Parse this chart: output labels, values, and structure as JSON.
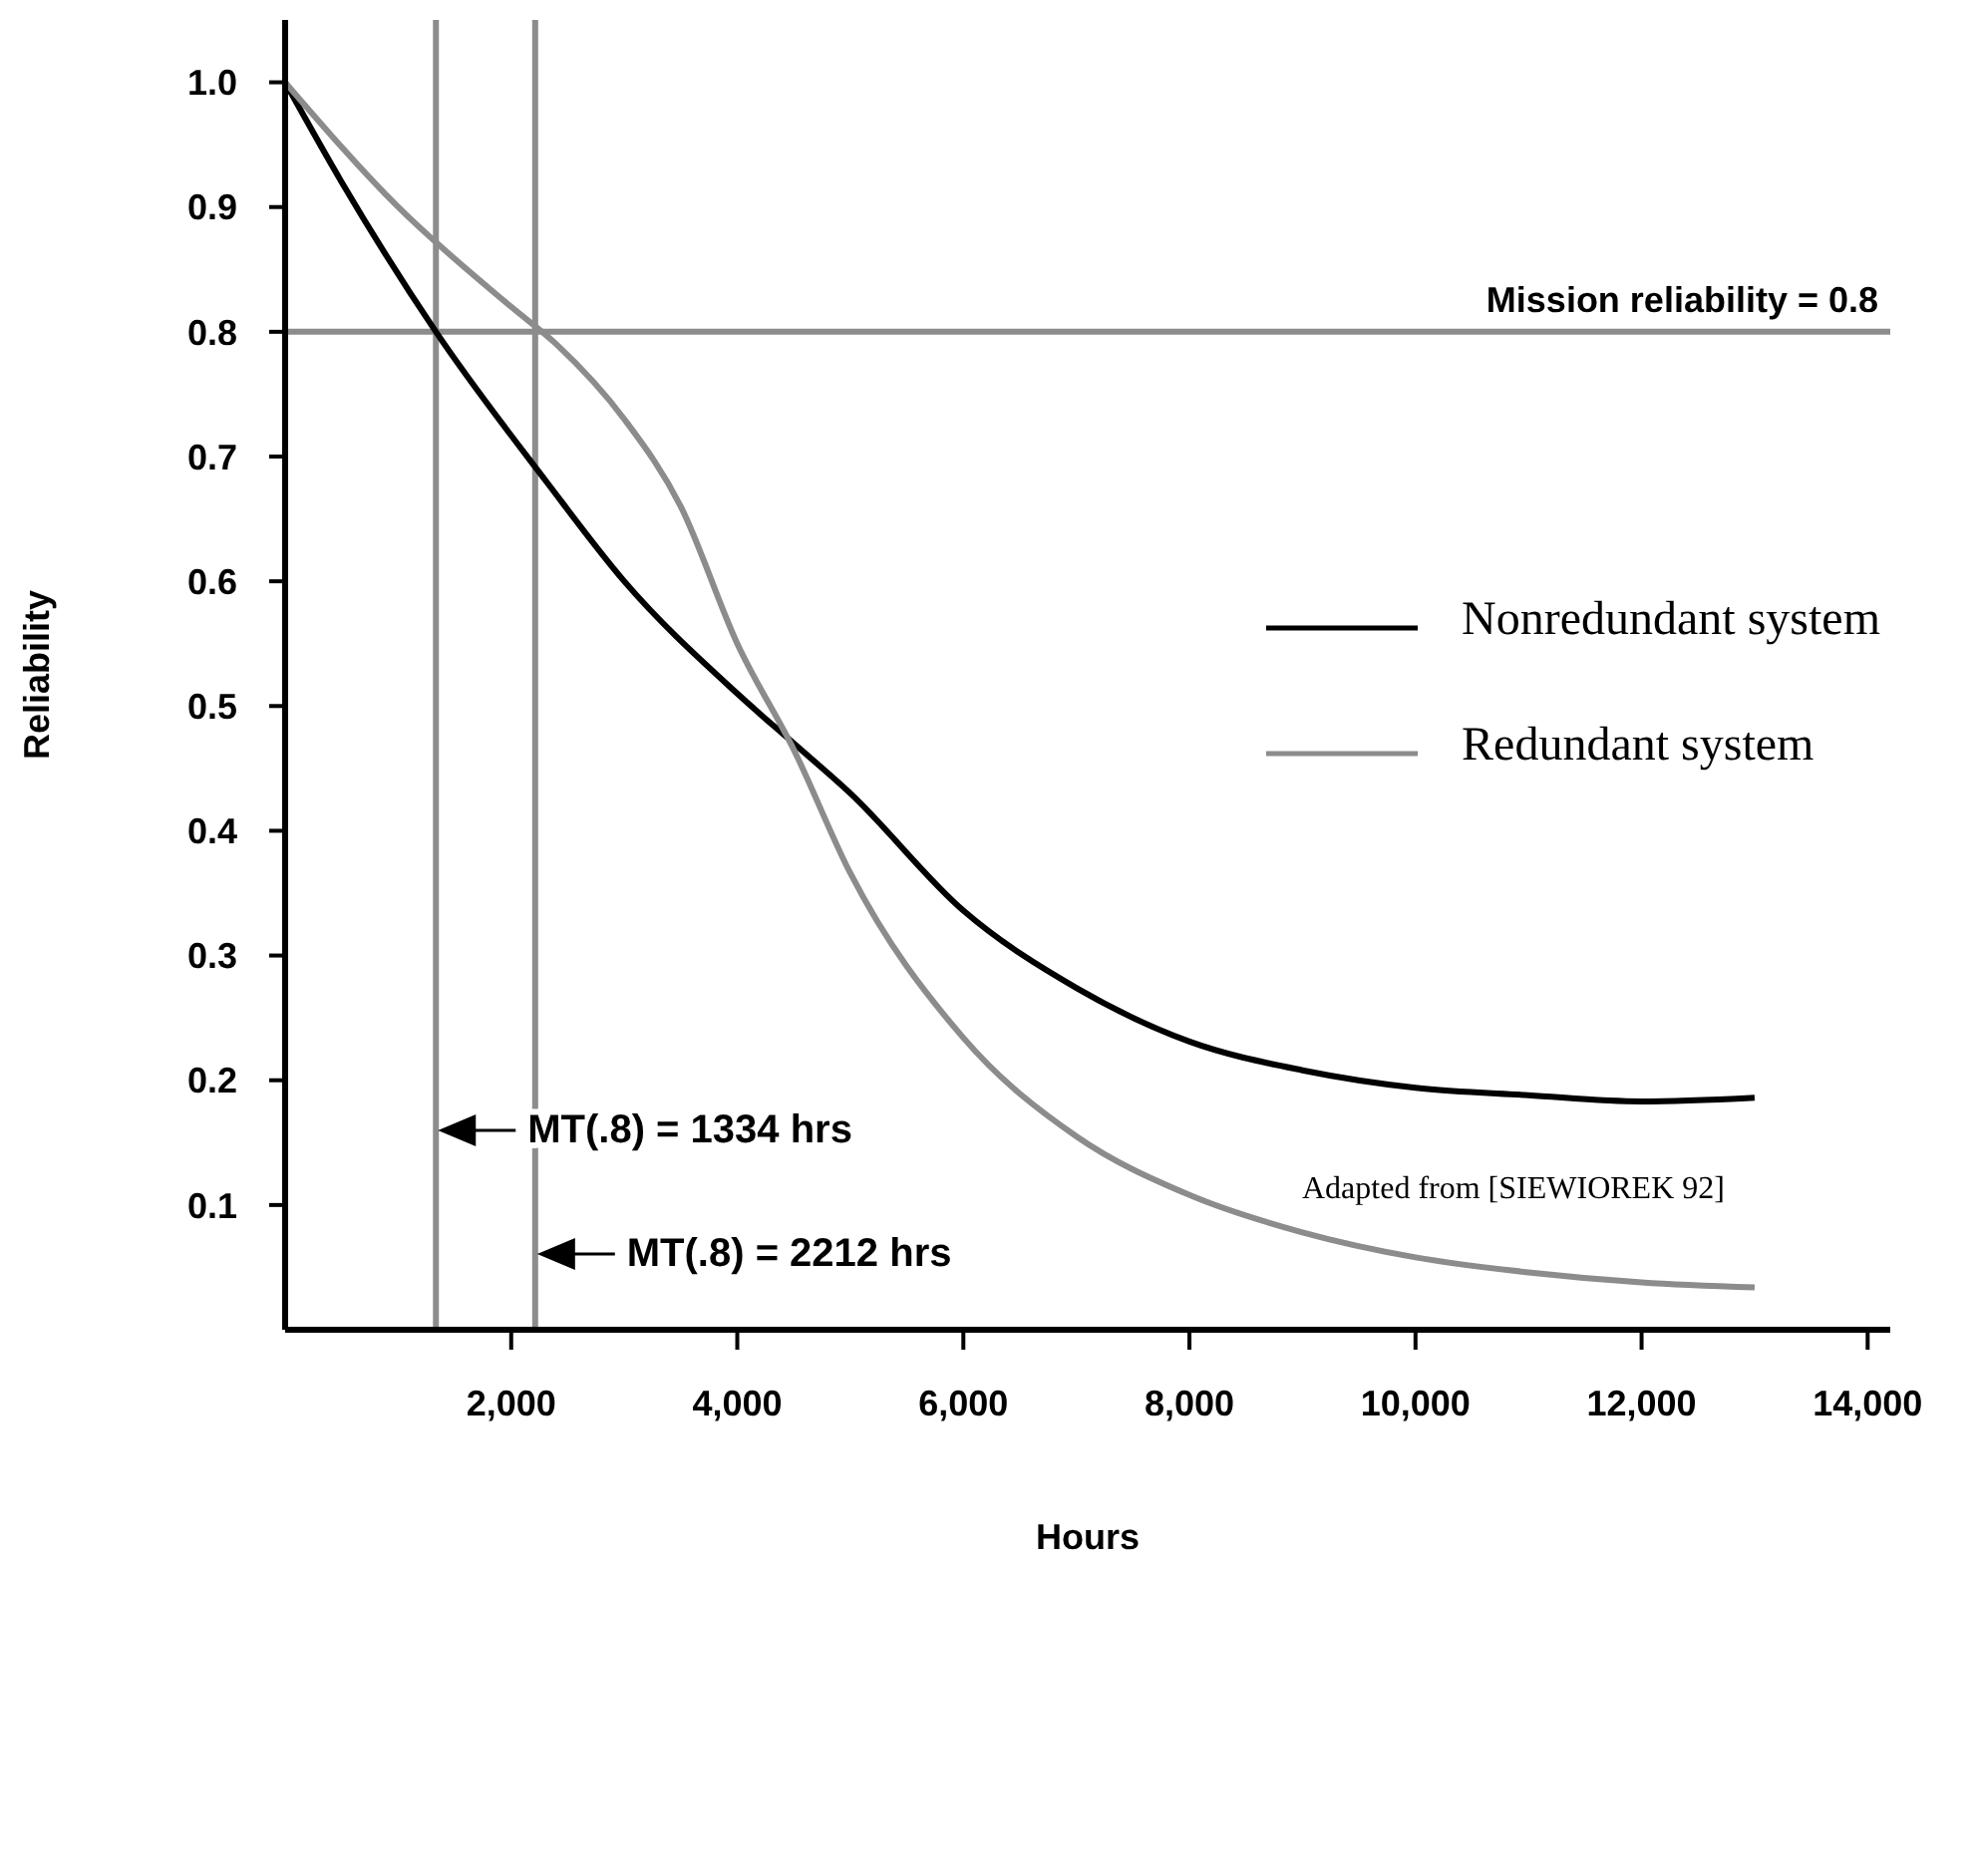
{
  "chart_data": {
    "type": "line",
    "xlabel": "Hours",
    "ylabel": "Reliability",
    "xlim": [
      0,
      14200
    ],
    "ylim": [
      0,
      1.05
    ],
    "xticks": [
      {
        "value": 2000,
        "label": "2,000"
      },
      {
        "value": 4000,
        "label": "4,000"
      },
      {
        "value": 6000,
        "label": "6,000"
      },
      {
        "value": 8000,
        "label": "8,000"
      },
      {
        "value": 10000,
        "label": "10,000"
      },
      {
        "value": 12000,
        "label": "12,000"
      },
      {
        "value": 14000,
        "label": "14,000"
      }
    ],
    "yticks": [
      0.1,
      0.2,
      0.3,
      0.4,
      0.5,
      0.6,
      0.7,
      0.8,
      0.9,
      {
        "value": 1,
        "label": "1.0"
      }
    ],
    "grid": false,
    "legend": "right",
    "marker": "none",
    "line_style": "solid",
    "series": [
      {
        "name": "Nonredundant system",
        "color": "#000000",
        "x": [
          0,
          500,
          1334,
          2310,
          3000,
          4000,
          4500,
          5000,
          6000,
          7000,
          8000,
          9000,
          10000,
          11000,
          12000,
          13000
        ],
        "values": [
          1.0,
          0.92,
          0.8,
          0.68,
          0.6,
          0.51,
          0.47,
          0.43,
          0.336,
          0.274,
          0.231,
          0.208,
          0.194,
          0.188,
          0.183,
          0.186
        ]
      },
      {
        "name": "Redundant system",
        "color": "#8c8c8c",
        "x": [
          0,
          1000,
          2000,
          2400,
          3000,
          3500,
          4000,
          4500,
          5000,
          6000,
          7000,
          8000,
          9000,
          10000,
          11000,
          12000,
          13000
        ],
        "values": [
          1.0,
          0.9,
          0.82,
          0.79,
          0.73,
          0.66,
          0.55,
          0.465,
          0.366,
          0.234,
          0.155,
          0.108,
          0.078,
          0.058,
          0.046,
          0.038,
          0.034
        ]
      }
    ],
    "ref_lines": [
      {
        "axis": "y",
        "value": 0.8,
        "label": "Mission reliability = 0.8",
        "color": "#8c8c8c"
      },
      {
        "axis": "x",
        "value": 1334,
        "label": "MT(.8) = 1334 hrs",
        "color": "#8c8c8c"
      },
      {
        "axis": "x",
        "value": 2212,
        "label": "MT(.8) = 2212 hrs",
        "color": "#8c8c8c"
      }
    ],
    "annotations": [
      "Adapted from [SIEWIOREK 92]"
    ]
  }
}
